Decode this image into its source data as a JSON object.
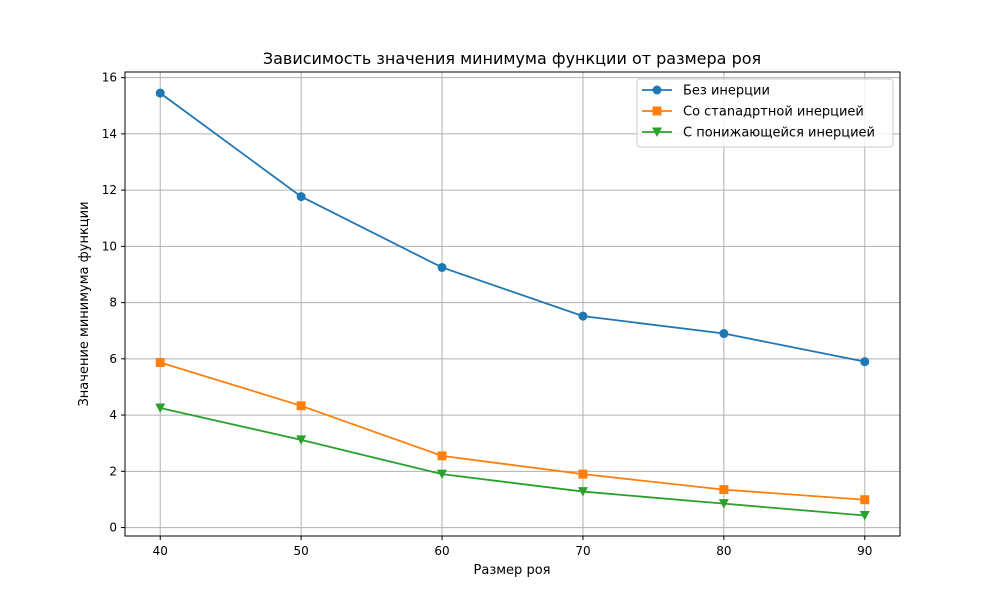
{
  "chart_data": {
    "type": "line",
    "title": "Зависимость значения минимума функции от размера роя",
    "xlabel": "Размер роя",
    "ylabel": "Значение минимума функции",
    "x": [
      40,
      50,
      60,
      70,
      80,
      90
    ],
    "x_ticks": [
      "40",
      "50",
      "60",
      "70",
      "80",
      "90"
    ],
    "y_ticks": [
      "0",
      "2",
      "4",
      "6",
      "8",
      "10",
      "12",
      "14",
      "16"
    ],
    "xlim": [
      37.5,
      92.5
    ],
    "ylim": [
      -0.3,
      16.2
    ],
    "grid": true,
    "legend_position": "top-right",
    "series": [
      {
        "name": "Без инерции",
        "color": "#1f77b4",
        "marker": "circle",
        "values": [
          15.45,
          11.77,
          9.25,
          7.52,
          6.9,
          5.9
        ]
      },
      {
        "name": "Со стanaдртной инерцией",
        "color": "#ff7f0e",
        "marker": "square",
        "values": [
          5.87,
          4.33,
          2.55,
          1.9,
          1.35,
          0.99
        ]
      },
      {
        "name": "С понижающейся инерцией",
        "color": "#2ca02c",
        "marker": "triangle-down",
        "values": [
          4.25,
          3.12,
          1.9,
          1.28,
          0.85,
          0.43
        ]
      }
    ]
  }
}
